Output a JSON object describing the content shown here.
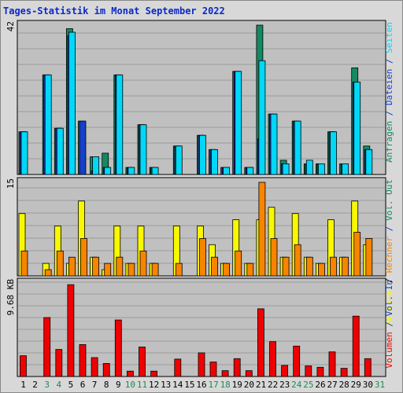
{
  "title": "Tages-Statistik im Monat September 2022",
  "colors": {
    "background": "#d8d8d8",
    "plot_background": "#c0c0c0",
    "gridline": "#9c9c9c",
    "hits": "#138a62",
    "files": "#1640c8",
    "pages": "#00d8f8",
    "visits": "#f8f800",
    "sites": "#f88400",
    "volume": "#f00000",
    "day_weekday": "#000000",
    "day_weekend": "#1d8a52"
  },
  "chart_data": [
    {
      "type": "bar",
      "panel": "top",
      "y_max_label": "42",
      "ylim": [
        0,
        42
      ],
      "right_axis_labels": [
        {
          "text": "Anfragen",
          "color": "#138a62"
        },
        {
          "text": " / ",
          "color": "#1640c8"
        },
        {
          "text": "Dateien",
          "color": "#1640c8"
        },
        {
          "text": " / ",
          "color": "#1640c8"
        },
        {
          "text": "Seiten",
          "color": "#00d8f8"
        }
      ],
      "categories": [
        "1",
        "2",
        "3",
        "4",
        "5",
        "6",
        "7",
        "8",
        "9",
        "10",
        "11",
        "12",
        "13",
        "14",
        "15",
        "16",
        "17",
        "18",
        "19",
        "20",
        "21",
        "22",
        "23",
        "24",
        "25",
        "26",
        "27",
        "28",
        "29",
        "30",
        "31"
      ],
      "series": [
        {
          "name": "Anfragen",
          "color": "#138a62",
          "values": [
            12,
            0,
            28,
            13,
            41,
            15,
            5,
            6,
            28,
            2,
            14,
            2,
            0,
            8,
            0,
            11,
            7,
            2,
            29,
            2,
            42,
            17,
            4,
            15,
            3,
            3,
            12,
            3,
            30,
            8,
            0
          ]
        },
        {
          "name": "Dateien",
          "color": "#1640c8",
          "values": [
            12,
            0,
            28,
            13,
            39,
            15,
            1,
            2,
            28,
            2,
            14,
            2,
            0,
            8,
            0,
            11,
            7,
            2,
            29,
            2,
            10,
            17,
            3,
            15,
            3,
            3,
            12,
            3,
            26,
            7,
            0
          ]
        },
        {
          "name": "Seiten",
          "color": "#00d8f8",
          "values": [
            12,
            0,
            28,
            13,
            40,
            0,
            5,
            2,
            28,
            2,
            14,
            2,
            0,
            8,
            0,
            11,
            7,
            2,
            29,
            2,
            32,
            17,
            3,
            15,
            4,
            3,
            12,
            3,
            26,
            7,
            0
          ]
        }
      ]
    },
    {
      "type": "bar",
      "panel": "middle",
      "y_max_label": "15",
      "ylim": [
        0,
        15
      ],
      "right_axis_labels": [
        {
          "text": "Besuche",
          "color": "#f8f800"
        },
        {
          "text": " / ",
          "color": "#000000"
        },
        {
          "text": "Rechner",
          "color": "#f88400"
        },
        {
          "text": " / ",
          "color": "#1640c8"
        },
        {
          "text": "Vol. Out",
          "color": "#138a62"
        }
      ],
      "categories": [
        "1",
        "2",
        "3",
        "4",
        "5",
        "6",
        "7",
        "8",
        "9",
        "10",
        "11",
        "12",
        "13",
        "14",
        "15",
        "16",
        "17",
        "18",
        "19",
        "20",
        "21",
        "22",
        "23",
        "24",
        "25",
        "26",
        "27",
        "28",
        "29",
        "30",
        "31"
      ],
      "series": [
        {
          "name": "Besuche",
          "color": "#f8f800",
          "values": [
            10,
            0,
            2,
            8,
            2,
            12,
            3,
            1,
            8,
            2,
            8,
            2,
            0,
            8,
            0,
            8,
            5,
            2,
            9,
            2,
            9,
            11,
            3,
            10,
            3,
            2,
            9,
            3,
            12,
            5,
            0
          ]
        },
        {
          "name": "Rechner",
          "color": "#f88400",
          "values": [
            4,
            0,
            1,
            4,
            3,
            6,
            3,
            2,
            3,
            2,
            4,
            2,
            0,
            2,
            0,
            6,
            3,
            2,
            4,
            2,
            15,
            6,
            3,
            5,
            3,
            2,
            3,
            3,
            7,
            6,
            0
          ]
        }
      ]
    },
    {
      "type": "bar",
      "panel": "bottom",
      "y_max_label": "9.68 KB",
      "ylim": [
        0,
        9.68
      ],
      "right_axis_labels": [
        {
          "text": "Volumen",
          "color": "#f00000"
        },
        {
          "text": " / ",
          "color": "#1640c8"
        },
        {
          "text": "Vol. In",
          "color": "#1640c8"
        }
      ],
      "categories": [
        "1",
        "2",
        "3",
        "4",
        "5",
        "6",
        "7",
        "8",
        "9",
        "10",
        "11",
        "12",
        "13",
        "14",
        "15",
        "16",
        "17",
        "18",
        "19",
        "20",
        "21",
        "22",
        "23",
        "24",
        "25",
        "26",
        "27",
        "28",
        "29",
        "30",
        "31"
      ],
      "series": [
        {
          "name": "Volumen",
          "color": "#f00000",
          "values": [
            2.15,
            0,
            6.1,
            2.8,
            9.5,
            3.3,
            1.95,
            1.35,
            5.85,
            0.55,
            3.05,
            0.55,
            0,
            1.8,
            0,
            2.45,
            1.5,
            0.6,
            1.85,
            0.6,
            7,
            3.6,
            1.15,
            3.15,
            1.1,
            0.95,
            2.55,
            0.85,
            6.25,
            1.85,
            0
          ]
        }
      ]
    }
  ],
  "weekend_days": [
    "3",
    "4",
    "10",
    "11",
    "17",
    "18",
    "24",
    "25",
    "31"
  ]
}
